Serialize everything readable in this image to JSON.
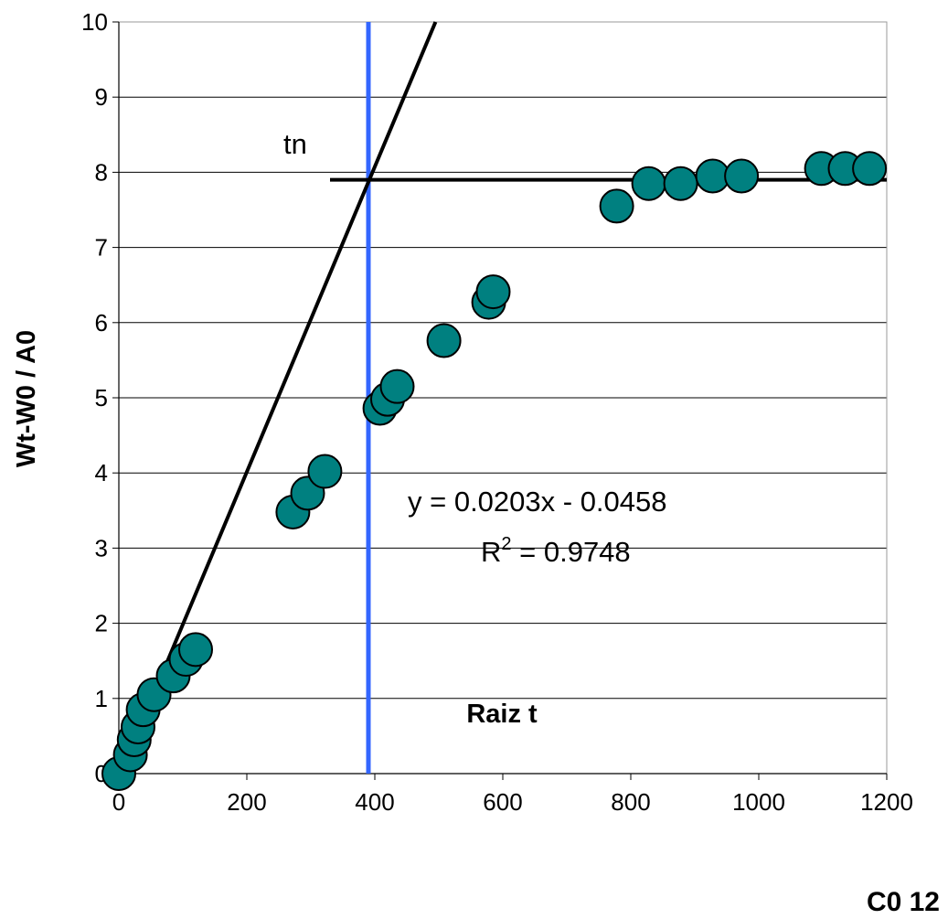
{
  "chart_data": {
    "type": "scatter",
    "xlabel": "Raiz t",
    "ylabel": "Wt-W0 / A0",
    "xlim": [
      0,
      1200
    ],
    "ylim": [
      0,
      10
    ],
    "x_ticks": [
      0,
      200,
      400,
      600,
      800,
      1000,
      1200
    ],
    "y_ticks": [
      0,
      1,
      2,
      3,
      4,
      5,
      6,
      7,
      8,
      9,
      10
    ],
    "grid": "horizontal",
    "marker_color": "#008080",
    "series": [
      {
        "points": [
          {
            "x": 0,
            "y": 0.0
          },
          {
            "x": 18,
            "y": 0.25
          },
          {
            "x": 24,
            "y": 0.45
          },
          {
            "x": 30,
            "y": 0.62
          },
          {
            "x": 38,
            "y": 0.85
          },
          {
            "x": 55,
            "y": 1.05
          },
          {
            "x": 85,
            "y": 1.3
          },
          {
            "x": 105,
            "y": 1.52
          },
          {
            "x": 120,
            "y": 1.65
          },
          {
            "x": 272,
            "y": 3.48
          },
          {
            "x": 295,
            "y": 3.73
          },
          {
            "x": 322,
            "y": 4.02
          },
          {
            "x": 408,
            "y": 4.86
          },
          {
            "x": 420,
            "y": 4.98
          },
          {
            "x": 435,
            "y": 5.15
          },
          {
            "x": 508,
            "y": 5.76
          },
          {
            "x": 578,
            "y": 6.27
          },
          {
            "x": 585,
            "y": 6.41
          },
          {
            "x": 778,
            "y": 7.55
          },
          {
            "x": 828,
            "y": 7.85
          },
          {
            "x": 878,
            "y": 7.85
          },
          {
            "x": 928,
            "y": 7.95
          },
          {
            "x": 973,
            "y": 7.95
          },
          {
            "x": 1098,
            "y": 8.05
          },
          {
            "x": 1135,
            "y": 8.05
          },
          {
            "x": 1173,
            "y": 8.05
          }
        ]
      }
    ],
    "trendline": {
      "slope": 0.0203,
      "intercept": -0.0458,
      "color": "#000000"
    },
    "horizontal_line": {
      "y": 7.9,
      "x_from": 330,
      "x_to": 1200,
      "color": "#000000"
    },
    "vertical_line": {
      "x": 390,
      "color": "#3366FF"
    },
    "annotations": {
      "tn": "tn",
      "equation": "y = 0.0203x - 0.0458",
      "r2_prefix": "R",
      "r2_sup": "2",
      "r2_value": " = 0.9748"
    },
    "corner_label": "C0 12"
  }
}
